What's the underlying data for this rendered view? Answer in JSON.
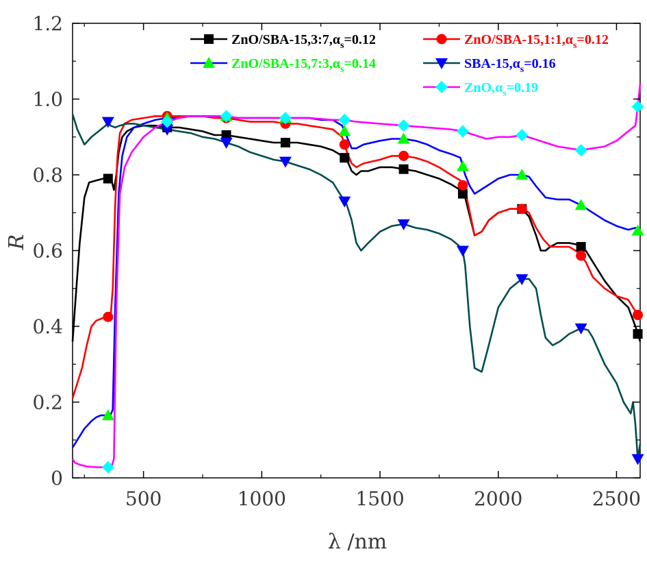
{
  "chart_data": {
    "type": "line",
    "xlabel": "λ /nm",
    "ylabel": "R",
    "xlim": [
      200,
      2600
    ],
    "ylim": [
      0,
      1.2
    ],
    "xticks": [
      500,
      1000,
      1500,
      2000,
      2500
    ],
    "xtick_labels": [
      "500",
      "1000",
      "1500",
      "2000",
      "2500"
    ],
    "yticks": [
      0,
      0.2,
      0.4,
      0.6,
      0.8,
      1.0,
      1.2
    ],
    "ytick_labels": [
      "0",
      "0.2",
      "0.4",
      "0.6",
      "0.8",
      "1.0",
      "1.2"
    ],
    "grid": false,
    "legend_position": "top-right",
    "series": [
      {
        "name": "ZnO/SBA-15,3:7,αs=0.12",
        "legend_main": "ZnO/SBA-15,3:7,α",
        "legend_sub": "s",
        "legend_tail": "=0.12",
        "color": "#000000",
        "marker": "square",
        "x": [
          200,
          210,
          230,
          250,
          270,
          300,
          330,
          350,
          365,
          375,
          385,
          395,
          410,
          430,
          460,
          500,
          550,
          600,
          650,
          700,
          750,
          800,
          850,
          900,
          950,
          1000,
          1050,
          1100,
          1150,
          1200,
          1250,
          1300,
          1340,
          1360,
          1380,
          1400,
          1420,
          1450,
          1500,
          1550,
          1600,
          1650,
          1700,
          1750,
          1800,
          1840,
          1860,
          1880,
          1900,
          1930,
          1960,
          2000,
          2050,
          2100,
          2130,
          2160,
          2180,
          2200,
          2220,
          2250,
          2300,
          2340,
          2370,
          2400,
          2450,
          2500,
          2550,
          2580,
          2600
        ],
        "y": [
          0.36,
          0.45,
          0.62,
          0.74,
          0.78,
          0.785,
          0.79,
          0.79,
          0.785,
          0.76,
          0.8,
          0.86,
          0.9,
          0.915,
          0.925,
          0.93,
          0.93,
          0.925,
          0.925,
          0.92,
          0.915,
          0.905,
          0.905,
          0.9,
          0.895,
          0.89,
          0.885,
          0.885,
          0.885,
          0.88,
          0.875,
          0.865,
          0.85,
          0.84,
          0.81,
          0.8,
          0.81,
          0.81,
          0.82,
          0.82,
          0.815,
          0.81,
          0.8,
          0.79,
          0.775,
          0.76,
          0.74,
          0.69,
          0.64,
          0.65,
          0.68,
          0.7,
          0.71,
          0.71,
          0.69,
          0.64,
          0.6,
          0.6,
          0.61,
          0.62,
          0.62,
          0.615,
          0.6,
          0.57,
          0.52,
          0.48,
          0.45,
          0.4,
          0.36
        ]
      },
      {
        "name": "ZnO/SBA-15,1:1,αs=0.12",
        "legend_main": "ZnO/SBA-15,1:1,α",
        "legend_sub": "s",
        "legend_tail": "=0.12",
        "color": "#ff0000",
        "marker": "circle",
        "x": [
          200,
          220,
          240,
          260,
          280,
          300,
          320,
          340,
          350,
          360,
          370,
          380,
          390,
          400,
          420,
          450,
          500,
          550,
          600,
          650,
          700,
          750,
          800,
          850,
          900,
          950,
          1000,
          1050,
          1100,
          1150,
          1200,
          1250,
          1300,
          1340,
          1360,
          1380,
          1400,
          1430,
          1500,
          1550,
          1600,
          1650,
          1700,
          1750,
          1800,
          1840,
          1860,
          1880,
          1900,
          1930,
          1960,
          2000,
          2050,
          2100,
          2130,
          2160,
          2190,
          2220,
          2250,
          2300,
          2340,
          2370,
          2400,
          2450,
          2500,
          2550,
          2580,
          2600
        ],
        "y": [
          0.21,
          0.25,
          0.29,
          0.35,
          0.4,
          0.415,
          0.42,
          0.425,
          0.425,
          0.42,
          0.5,
          0.72,
          0.85,
          0.91,
          0.935,
          0.945,
          0.95,
          0.955,
          0.955,
          0.955,
          0.955,
          0.955,
          0.95,
          0.95,
          0.945,
          0.94,
          0.94,
          0.94,
          0.935,
          0.935,
          0.93,
          0.925,
          0.92,
          0.9,
          0.86,
          0.83,
          0.82,
          0.83,
          0.84,
          0.85,
          0.85,
          0.845,
          0.835,
          0.82,
          0.8,
          0.785,
          0.76,
          0.7,
          0.64,
          0.65,
          0.68,
          0.7,
          0.71,
          0.71,
          0.7,
          0.66,
          0.63,
          0.61,
          0.61,
          0.61,
          0.595,
          0.57,
          0.53,
          0.5,
          0.48,
          0.47,
          0.44,
          0.42
        ]
      },
      {
        "name": "ZnO/SBA-15,7:3,αs=0.14",
        "legend_main": "ZnO/SBA-15,7:3,α",
        "legend_sub": "s",
        "legend_tail": "=0.14",
        "color": "#0000ff",
        "marker": "triangle-up",
        "marker_color": "#00ff00",
        "legend_color": "#00ff00",
        "x": [
          200,
          220,
          250,
          280,
          300,
          320,
          340,
          350,
          360,
          370,
          380,
          395,
          410,
          430,
          460,
          500,
          550,
          600,
          650,
          700,
          750,
          800,
          850,
          900,
          950,
          1000,
          1050,
          1100,
          1150,
          1200,
          1250,
          1300,
          1340,
          1360,
          1380,
          1400,
          1430,
          1500,
          1550,
          1600,
          1650,
          1700,
          1750,
          1800,
          1840,
          1860,
          1880,
          1900,
          1950,
          2000,
          2050,
          2100,
          2130,
          2160,
          2200,
          2250,
          2300,
          2350,
          2400,
          2450,
          2500,
          2550,
          2580,
          2600
        ],
        "y": [
          0.08,
          0.1,
          0.13,
          0.15,
          0.16,
          0.165,
          0.165,
          0.165,
          0.165,
          0.18,
          0.45,
          0.75,
          0.85,
          0.9,
          0.925,
          0.935,
          0.945,
          0.95,
          0.95,
          0.955,
          0.955,
          0.955,
          0.955,
          0.95,
          0.95,
          0.95,
          0.95,
          0.95,
          0.95,
          0.95,
          0.945,
          0.945,
          0.93,
          0.9,
          0.87,
          0.87,
          0.88,
          0.89,
          0.895,
          0.895,
          0.89,
          0.88,
          0.865,
          0.855,
          0.845,
          0.8,
          0.77,
          0.75,
          0.77,
          0.79,
          0.8,
          0.8,
          0.795,
          0.77,
          0.74,
          0.735,
          0.735,
          0.72,
          0.7,
          0.68,
          0.665,
          0.655,
          0.66,
          0.645
        ]
      },
      {
        "name": "SBA-15,αs=0.16",
        "legend_main": "SBA-15,α",
        "legend_sub": "s",
        "legend_tail": "=0.16",
        "color": "#004d4d",
        "marker": "triangle-down",
        "marker_color": "#0000ff",
        "legend_color": "#0000ff",
        "x": [
          200,
          210,
          220,
          235,
          250,
          265,
          280,
          300,
          320,
          340,
          350,
          360,
          380,
          400,
          430,
          460,
          500,
          550,
          600,
          650,
          700,
          750,
          800,
          850,
          900,
          950,
          1000,
          1050,
          1100,
          1150,
          1200,
          1250,
          1300,
          1320,
          1340,
          1360,
          1380,
          1400,
          1420,
          1450,
          1500,
          1550,
          1600,
          1650,
          1700,
          1750,
          1800,
          1830,
          1850,
          1860,
          1880,
          1900,
          1930,
          1960,
          2000,
          2050,
          2100,
          2130,
          2160,
          2180,
          2200,
          2230,
          2260,
          2300,
          2350,
          2380,
          2400,
          2450,
          2500,
          2530,
          2560,
          2570,
          2580,
          2590,
          2600
        ],
        "y": [
          0.96,
          0.94,
          0.92,
          0.9,
          0.88,
          0.89,
          0.9,
          0.91,
          0.92,
          0.93,
          0.94,
          0.93,
          0.925,
          0.93,
          0.935,
          0.935,
          0.93,
          0.925,
          0.92,
          0.915,
          0.91,
          0.9,
          0.895,
          0.885,
          0.875,
          0.86,
          0.85,
          0.84,
          0.835,
          0.825,
          0.815,
          0.8,
          0.78,
          0.76,
          0.74,
          0.72,
          0.68,
          0.62,
          0.6,
          0.62,
          0.65,
          0.665,
          0.67,
          0.66,
          0.655,
          0.645,
          0.63,
          0.615,
          0.6,
          0.56,
          0.4,
          0.29,
          0.28,
          0.35,
          0.45,
          0.5,
          0.525,
          0.525,
          0.5,
          0.43,
          0.37,
          0.35,
          0.36,
          0.38,
          0.395,
          0.39,
          0.37,
          0.3,
          0.25,
          0.2,
          0.17,
          0.2,
          0.14,
          0.05,
          0.09
        ]
      },
      {
        "name": "ZnO,αs=0.19",
        "legend_main": "ZnO,α",
        "legend_sub": "s",
        "legend_tail": "=0.19",
        "color": "#ff00ff",
        "marker": "diamond",
        "marker_color": "#00ffff",
        "legend_color": "#00ffff",
        "x": [
          200,
          210,
          230,
          260,
          300,
          330,
          350,
          365,
          375,
          385,
          400,
          420,
          450,
          500,
          550,
          600,
          650,
          700,
          750,
          800,
          850,
          900,
          1000,
          1100,
          1200,
          1300,
          1350,
          1400,
          1500,
          1600,
          1700,
          1800,
          1850,
          1900,
          1950,
          2000,
          2050,
          2100,
          2150,
          2200,
          2250,
          2300,
          2350,
          2400,
          2450,
          2500,
          2540,
          2560,
          2580,
          2590,
          2600
        ],
        "y": [
          0.05,
          0.04,
          0.035,
          0.03,
          0.028,
          0.028,
          0.028,
          0.03,
          0.05,
          0.45,
          0.75,
          0.82,
          0.86,
          0.9,
          0.925,
          0.94,
          0.95,
          0.955,
          0.955,
          0.955,
          0.955,
          0.95,
          0.95,
          0.95,
          0.95,
          0.945,
          0.945,
          0.94,
          0.935,
          0.93,
          0.925,
          0.92,
          0.915,
          0.905,
          0.895,
          0.9,
          0.9,
          0.905,
          0.895,
          0.885,
          0.875,
          0.87,
          0.865,
          0.87,
          0.875,
          0.89,
          0.91,
          0.92,
          0.93,
          0.98,
          1.04
        ]
      }
    ]
  }
}
